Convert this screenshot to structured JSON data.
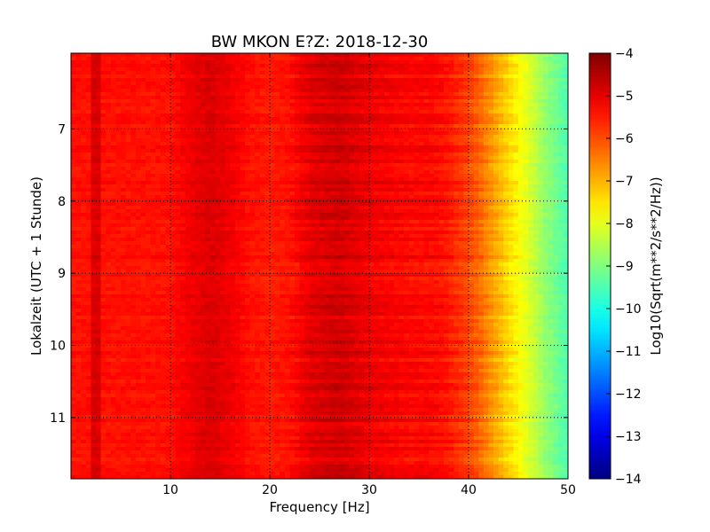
{
  "chart_data": {
    "type": "heatmap",
    "title": "BW MKON E?Z: 2018-12-30",
    "xlabel": "Frequency [Hz]",
    "ylabel": "Lokalzeit (UTC + 1 Stunde)",
    "xlim": [
      0,
      50
    ],
    "ylim": [
      5.95,
      11.85
    ],
    "y_inverted": true,
    "grid": true,
    "x_ticks": [
      10,
      20,
      30,
      40,
      50
    ],
    "x_tick_labels": [
      "10",
      "20",
      "30",
      "40",
      "50"
    ],
    "y_ticks": [
      7,
      8,
      9,
      10,
      11
    ],
    "y_tick_labels": [
      "7",
      "8",
      "9",
      "10",
      "11"
    ],
    "colorbar": {
      "label": "Log10(Sqrt(m**2/s**2/Hz))",
      "colormap": "jet",
      "range": [
        -14,
        -4
      ],
      "ticks": [
        -4,
        -5,
        -6,
        -7,
        -8,
        -9,
        -10,
        -11,
        -12,
        -13,
        -14
      ],
      "tick_labels": [
        "−4",
        "−5",
        "−6",
        "−7",
        "−8",
        "−9",
        "−10",
        "−11",
        "−12",
        "−13",
        "−14"
      ]
    },
    "spectral_profile": {
      "frequency_hz": [
        0,
        2,
        2.5,
        3,
        5,
        8,
        10,
        12,
        14,
        16,
        18,
        20,
        22,
        24,
        26,
        27,
        28,
        30,
        32,
        34,
        36,
        37,
        38,
        40,
        41,
        42,
        43,
        44,
        45,
        46,
        47,
        48,
        49,
        50
      ],
      "log10_psd": [
        -5.4,
        -5.4,
        -4.4,
        -5.4,
        -5.4,
        -5.4,
        -5.4,
        -5.1,
        -4.9,
        -5.1,
        -5.4,
        -5.5,
        -5.4,
        -5.0,
        -4.85,
        -4.8,
        -4.9,
        -5.1,
        -5.2,
        -5.3,
        -5.3,
        -5.35,
        -5.5,
        -5.9,
        -6.2,
        -6.6,
        -7.0,
        -7.4,
        -7.7,
        -8.1,
        -8.5,
        -8.9,
        -9.2,
        -9.5
      ]
    }
  }
}
